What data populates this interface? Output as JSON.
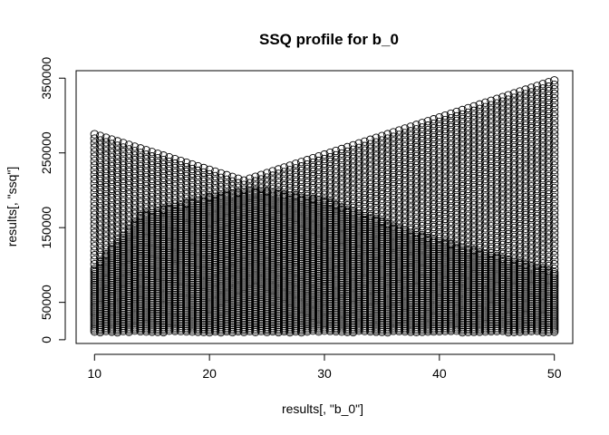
{
  "chart_data": {
    "type": "scatter",
    "title": "SSQ profile for b_0",
    "xlabel": "results[, \"b_0\"]",
    "ylabel": "results[, \"ssq\"]",
    "xlim": [
      8.4,
      51.6
    ],
    "ylim": [
      -5000,
      360000
    ],
    "x_ticks": [
      10,
      20,
      30,
      40,
      50
    ],
    "y_ticks": [
      0,
      50000,
      150000,
      250000,
      350000
    ],
    "x_tick_labels": [
      "10",
      "20",
      "30",
      "40",
      "50"
    ],
    "y_tick_labels": [
      "0",
      "50000",
      "150000",
      "250000",
      "350000"
    ],
    "marker": "open-circle",
    "grid": false,
    "point_cloud": {
      "x_min": 10,
      "x_max": 50,
      "x_step": 0.5,
      "upper_envelope": [
        [
          10,
          275000
        ],
        [
          23,
          213000
        ],
        [
          50,
          347000
        ]
      ],
      "solid_band_top": [
        [
          10,
          95000
        ],
        [
          14,
          165000
        ],
        [
          20,
          190000
        ],
        [
          24,
          200000
        ],
        [
          30,
          185000
        ],
        [
          38,
          140000
        ],
        [
          45,
          110000
        ],
        [
          50,
          90000
        ]
      ],
      "lower_bound": 10000,
      "row_spacing": 6000
    }
  }
}
